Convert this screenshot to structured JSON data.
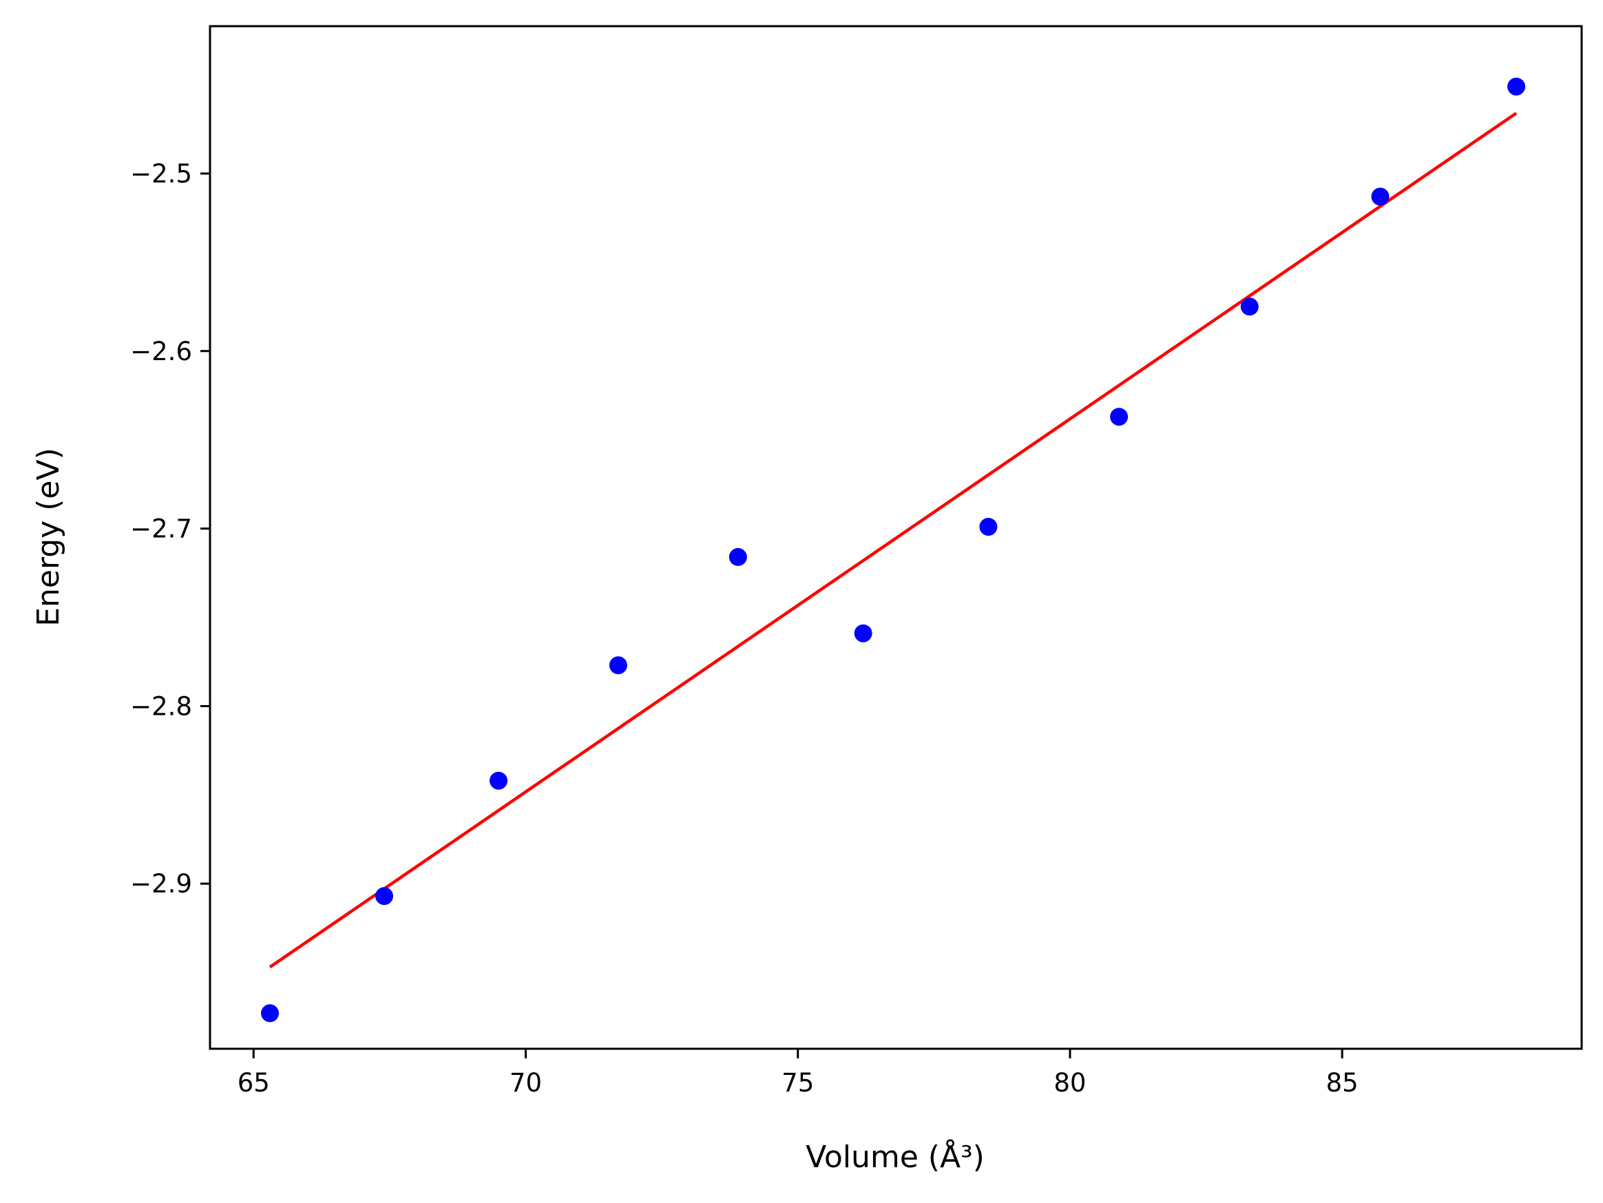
{
  "chart_data": {
    "type": "scatter",
    "xlabel": "Volume (Å³)",
    "ylabel": "Energy (eV)",
    "xlim": [
      64.2,
      89.4
    ],
    "ylim": [
      -2.993,
      -2.417
    ],
    "xticks": [
      65,
      70,
      75,
      80,
      85
    ],
    "yticks": [
      -2.5,
      -2.6,
      -2.7,
      -2.8,
      -2.9
    ],
    "xtick_labels": [
      "65",
      "70",
      "75",
      "80",
      "85"
    ],
    "ytick_labels": [
      "−2.5",
      "−2.6",
      "−2.7",
      "−2.8",
      "−2.9"
    ],
    "grid": false,
    "series": [
      {
        "kind": "scatter",
        "color": "#0000ff",
        "x": [
          65.3,
          67.4,
          69.5,
          71.7,
          73.9,
          76.2,
          78.5,
          80.9,
          83.3,
          85.7,
          88.2
        ],
        "y": [
          -2.973,
          -2.907,
          -2.842,
          -2.777,
          -2.716,
          -2.759,
          -2.699,
          -2.637,
          -2.575,
          -2.513,
          -2.451
        ]
      },
      {
        "kind": "line",
        "color": "#ff0000",
        "x": [
          65.3,
          88.2
        ],
        "y": [
          -2.947,
          -2.466
        ]
      }
    ]
  }
}
